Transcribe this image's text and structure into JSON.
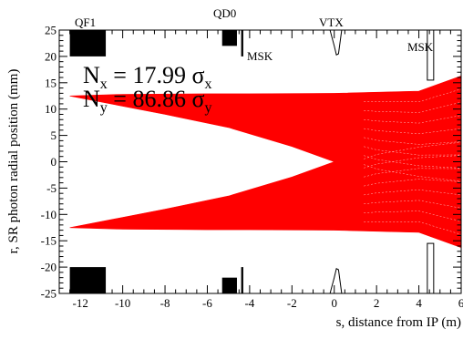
{
  "chart_data": {
    "type": "line",
    "title": "",
    "xlabel": "s, distance from IP (m)",
    "ylabel": "r, SR photon radial position (mm)",
    "xlim": [
      -13,
      6
    ],
    "ylim": [
      -25,
      25
    ],
    "x_ticks": [
      -12,
      -10,
      -8,
      -6,
      -4,
      -2,
      0,
      2,
      4,
      6
    ],
    "y_ticks": [
      -25,
      -20,
      -15,
      -10,
      -5,
      0,
      5,
      10,
      15,
      20,
      25
    ],
    "x_tick_labels": [
      "-12",
      "-10",
      "-8",
      "-6",
      "-4",
      "-2",
      "0",
      "2",
      "4",
      "6"
    ],
    "y_tick_labels": [
      "-25",
      "-20",
      "-15",
      "-10",
      "-5",
      "0",
      "5",
      "10",
      "15",
      "20",
      "25"
    ],
    "grid": false,
    "annotations": {
      "nx": "N",
      "nx_sub": "x",
      "nx_value": " = 17.99 σ",
      "nx_sigma_sub": "x",
      "ny": "N",
      "ny_sub": "y",
      "ny_value": " = 86.86 σ",
      "ny_sigma_sub": "y"
    },
    "element_labels": {
      "qf1": "QF1",
      "qd0": "QD0",
      "vtx": "VTX",
      "msk_left": "MSK",
      "msk_right": "MSK"
    },
    "ray_color": "#ff0000",
    "upper_band": {
      "top_edge": [
        [
          -12.5,
          12.5
        ],
        [
          -10,
          12.8
        ],
        [
          -6,
          12.9
        ],
        [
          -4,
          12.9
        ],
        [
          0,
          13.0
        ],
        [
          4,
          13.4
        ],
        [
          6,
          16.3
        ]
      ],
      "bottom_edge": [
        [
          -12.5,
          12.5
        ],
        [
          -8,
          9.0
        ],
        [
          -5,
          6.5
        ],
        [
          -2,
          2.9
        ],
        [
          0,
          0
        ],
        [
          2,
          -3.2
        ],
        [
          4,
          -4.8
        ],
        [
          6,
          -6.2
        ]
      ]
    },
    "lower_band": {
      "top_edge": [
        [
          -12.5,
          -12.5
        ],
        [
          -8,
          -9.0
        ],
        [
          -5,
          -6.5
        ],
        [
          -2,
          -2.9
        ],
        [
          0,
          0
        ],
        [
          2,
          3.2
        ],
        [
          4,
          4.8
        ],
        [
          6,
          6.2
        ]
      ],
      "bottom_edge": [
        [
          -12.5,
          -12.5
        ],
        [
          -10,
          -12.8
        ],
        [
          -6,
          -12.9
        ],
        [
          -4,
          -12.9
        ],
        [
          0,
          -13.0
        ],
        [
          4,
          -13.4
        ],
        [
          6,
          -16.3
        ]
      ]
    },
    "apertures": {
      "qf1": {
        "s": [
          -12.5,
          -10.8
        ],
        "r": [
          20,
          25
        ]
      },
      "qd0": {
        "s": [
          -5.3,
          -4.6
        ],
        "r": [
          22,
          25
        ]
      },
      "msk_left": {
        "s": [
          -4.4,
          -4.3
        ],
        "r": [
          20,
          25
        ]
      },
      "vtx_profile": [
        [
          -0.2,
          25
        ],
        [
          0,
          22
        ],
        [
          0.1,
          20.3
        ],
        [
          0.2,
          20.5
        ],
        [
          0.35,
          25
        ]
      ],
      "msk_right": {
        "s": [
          4.4,
          4.7
        ],
        "r": [
          15.5,
          25
        ]
      }
    },
    "axis_color": "#000000"
  }
}
